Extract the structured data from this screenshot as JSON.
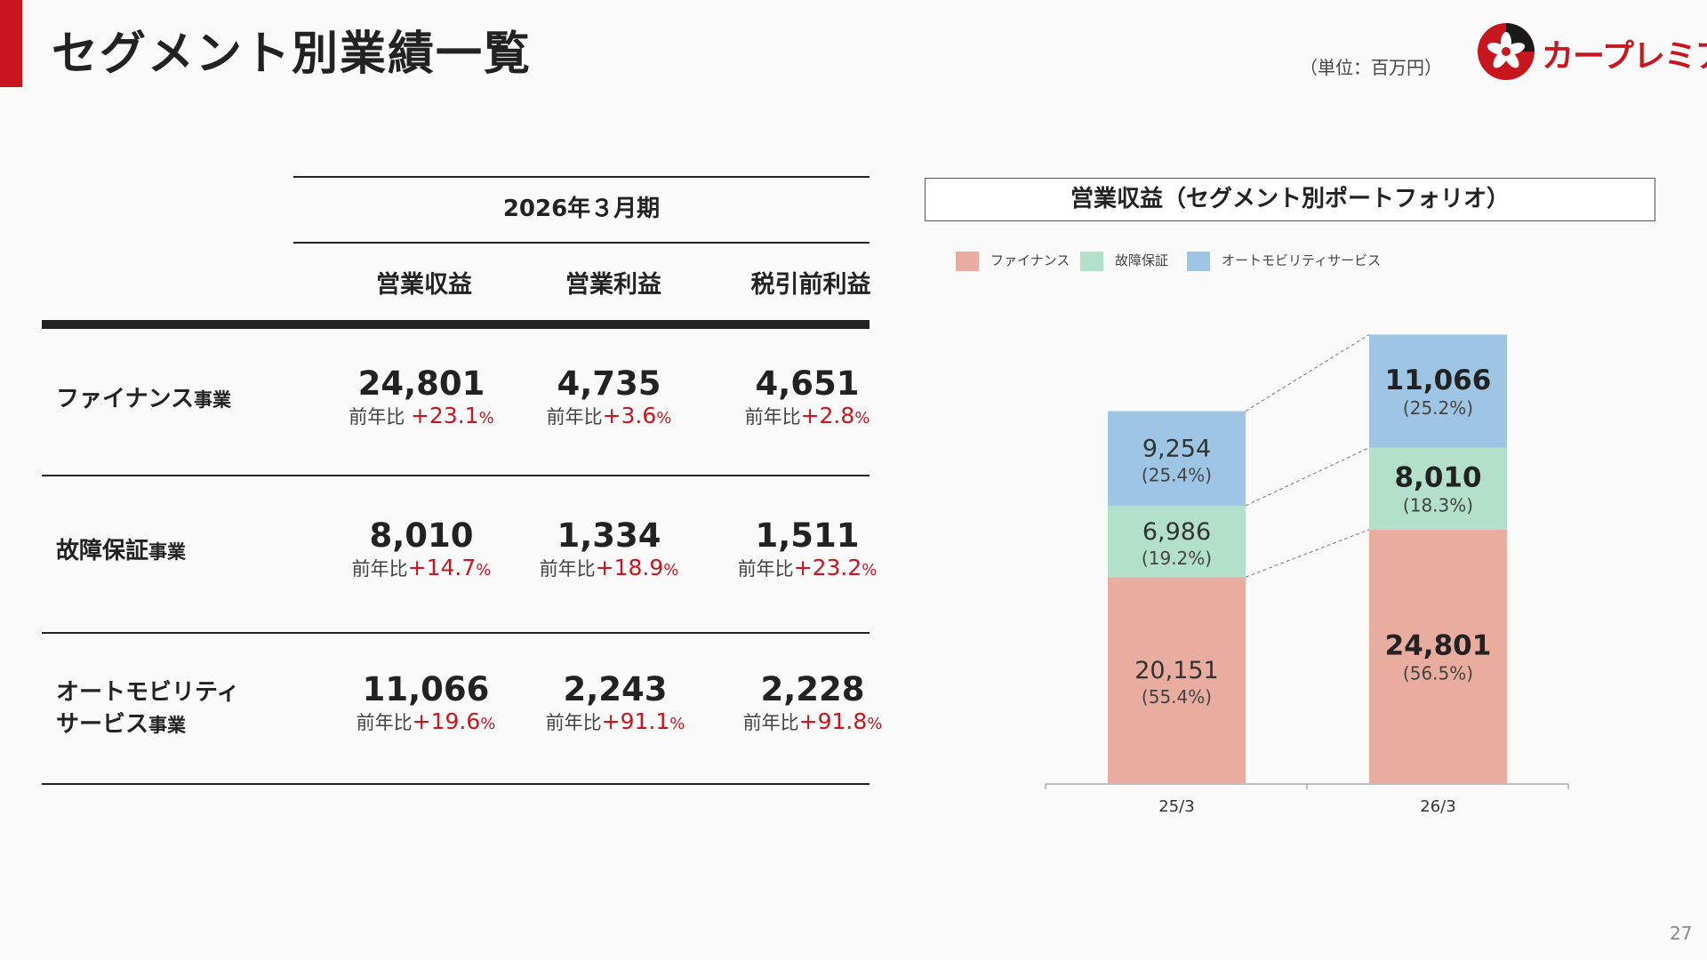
{
  "header": {
    "title": "セグメント別業績一覧",
    "unit_note": "（単位：百万円）",
    "logo_text": "カープレミア"
  },
  "table": {
    "period": "2026年３月期",
    "columns": [
      "営業収益",
      "営業利益",
      "税引前利益"
    ],
    "yoy_prefix": "前年比",
    "rows": [
      {
        "label_main": "ファイナンス",
        "label_suffix": "事業",
        "cells": [
          {
            "value": "24,801",
            "prefix": "前年比 ",
            "pct": "+23.1",
            "unit": "%"
          },
          {
            "value": "4,735",
            "prefix": "前年比",
            "pct": "+3.6",
            "unit": "%"
          },
          {
            "value": "4,651",
            "prefix": "前年比",
            "pct": "+2.8",
            "unit": "%"
          }
        ]
      },
      {
        "label_main": "故障保証",
        "label_suffix": "事業",
        "cells": [
          {
            "value": "8,010",
            "prefix": "前年比",
            "pct": "+14.7",
            "unit": "%"
          },
          {
            "value": "1,334",
            "prefix": "前年比",
            "pct": "+18.9",
            "unit": "%"
          },
          {
            "value": "1,511",
            "prefix": "前年比",
            "pct": "+23.2",
            "unit": "%"
          }
        ]
      },
      {
        "label_main": "オートモビリティ",
        "label_line2": "サービス",
        "label_suffix": "事業",
        "cells": [
          {
            "value": "11,066",
            "prefix": "前年比",
            "pct": "+19.6",
            "unit": "%"
          },
          {
            "value": "2,243",
            "prefix": "前年比",
            "pct": "+91.1",
            "unit": "%"
          },
          {
            "value": "2,228",
            "prefix": "前年比",
            "pct": "+91.8",
            "unit": "%"
          }
        ]
      }
    ]
  },
  "chart_data": {
    "type": "bar",
    "stacked": true,
    "title": "営業収益（セグメント別ポートフォリオ）",
    "categories": [
      "25/3",
      "26/3"
    ],
    "series": [
      {
        "name": "ファイナンス",
        "color": "#e8ad9f",
        "values": [
          20151,
          24801
        ],
        "labels": [
          "20,151",
          "24,801"
        ],
        "shares": [
          "(55.4%)",
          "(56.5%)"
        ]
      },
      {
        "name": "故障保証",
        "color": "#b3e0cb",
        "values": [
          6986,
          8010
        ],
        "labels": [
          "6,986",
          "8,010"
        ],
        "shares": [
          "(19.2%)",
          "(18.3%)"
        ]
      },
      {
        "name": "オートモビリティサービス",
        "color": "#9ec6e4",
        "values": [
          9254,
          11066
        ],
        "labels": [
          "9,254",
          "11,066"
        ],
        "shares": [
          "(25.4%)",
          "(25.2%)"
        ]
      }
    ],
    "bold_category": "26/3",
    "legend_position": "top-left",
    "grid": false
  },
  "footer": {
    "page_number": "27"
  }
}
